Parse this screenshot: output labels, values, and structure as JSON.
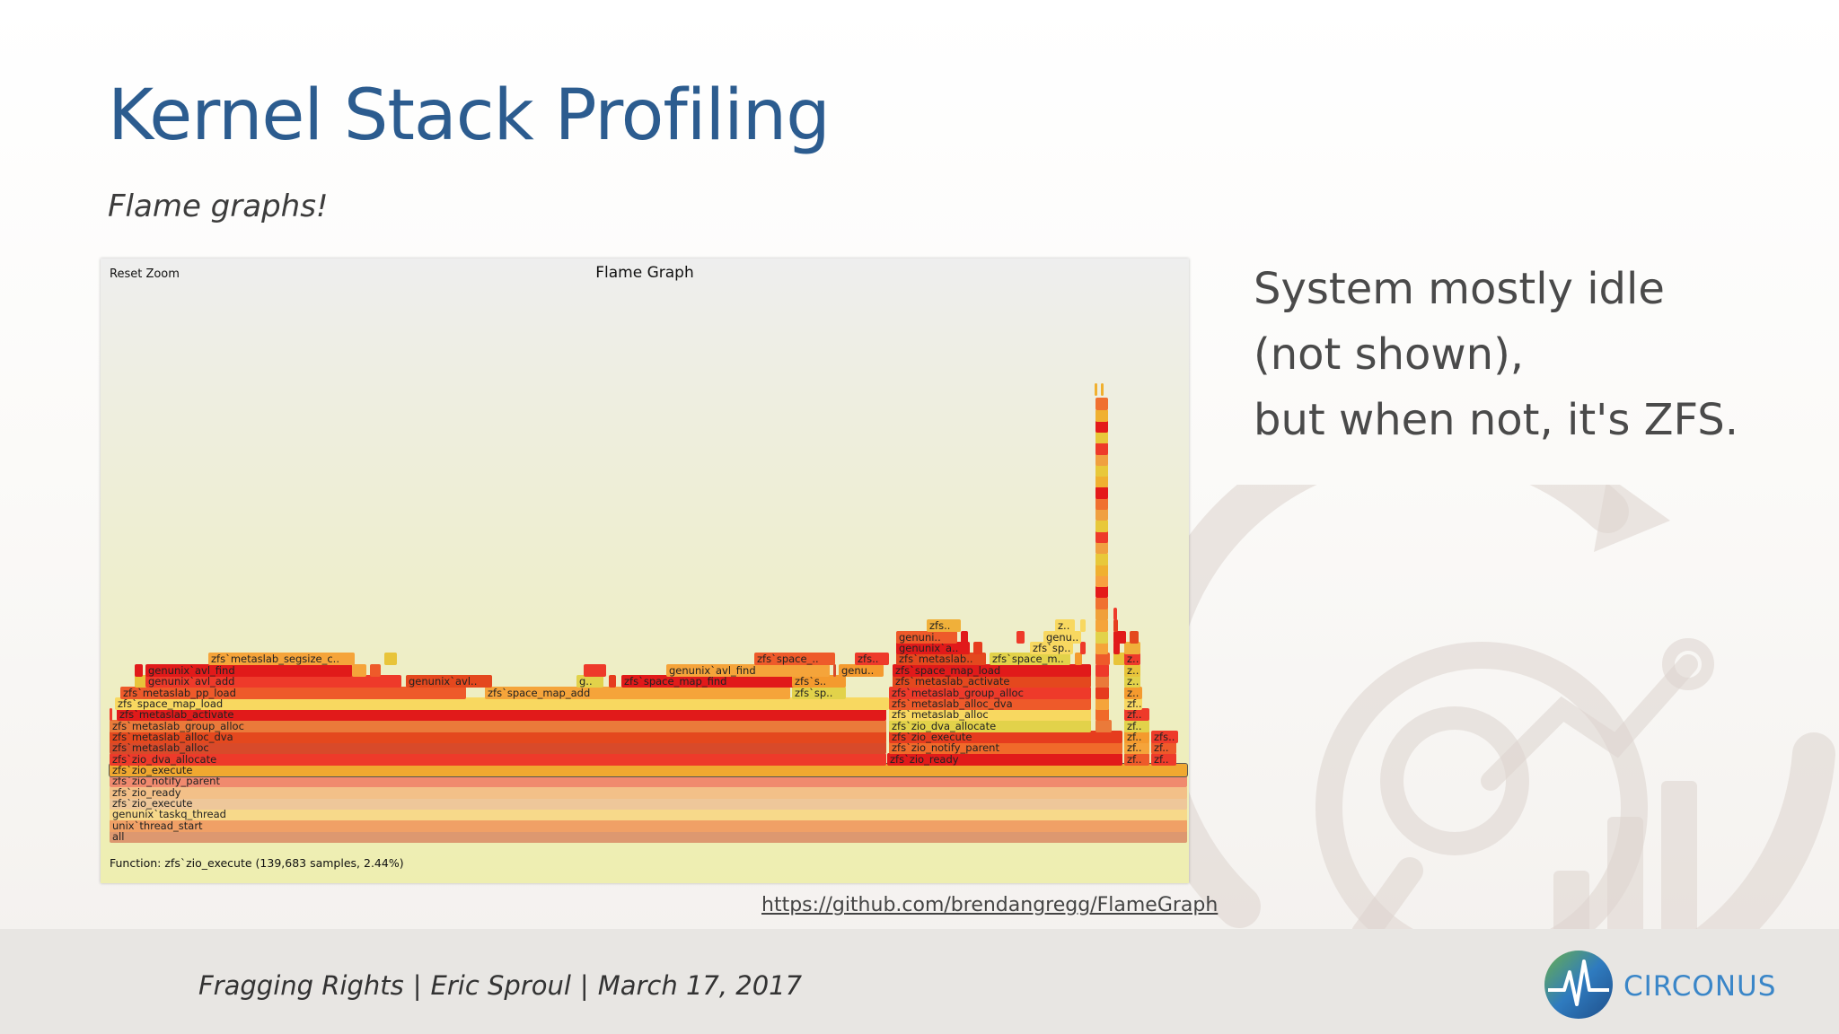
{
  "slide": {
    "title": "Kernel Stack Profiling",
    "subtitle": "Flame graphs!"
  },
  "flamegraph": {
    "reset_zoom": "Reset Zoom",
    "title": "Flame Graph",
    "details": "Function: zfs`zio_execute (139,683 samples, 2.44%)",
    "background_colors": [
      "#eeeeee",
      "#eeeeb0"
    ]
  },
  "side_note": {
    "lines": [
      "System mostly idle",
      "(not shown),",
      "but when not, it's ZFS."
    ]
  },
  "source_link": "https://github.com/brendangregg/FlameGraph",
  "footer": {
    "talk": "Fragging Rights",
    "author": "Eric Sproul",
    "date": "March 17, 2017",
    "separator": "|",
    "brand": "CIRCONUS"
  },
  "colors": {
    "title": "#2c5c8f",
    "brand": "#3a86c8",
    "footer_bg": "#e8e6e3"
  }
}
